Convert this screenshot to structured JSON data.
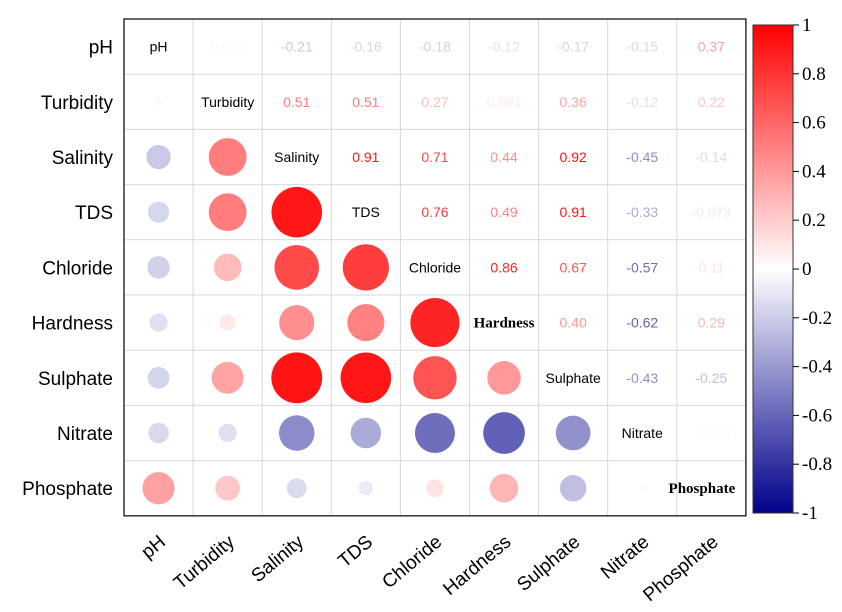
{
  "chart_data": {
    "type": "heatmap",
    "variables": [
      "pH",
      "Turbidity",
      "Salinity",
      "TDS",
      "Chloride",
      "Hardness",
      "Sulphate",
      "Nitrate",
      "Phosphate"
    ],
    "matrix": [
      [
        1,
        0.023,
        -0.21,
        -0.16,
        -0.18,
        -0.12,
        -0.17,
        -0.15,
        0.37
      ],
      [
        0.023,
        1,
        0.51,
        0.51,
        0.27,
        0.091,
        0.36,
        -0.12,
        0.22
      ],
      [
        -0.21,
        0.51,
        1,
        0.91,
        0.71,
        0.44,
        0.92,
        -0.45,
        -0.14
      ],
      [
        -0.16,
        0.51,
        0.91,
        1,
        0.76,
        0.49,
        0.91,
        -0.33,
        -0.073
      ],
      [
        -0.18,
        0.27,
        0.71,
        0.76,
        1,
        0.86,
        0.67,
        -0.57,
        0.11
      ],
      [
        -0.12,
        0.091,
        0.44,
        0.49,
        0.86,
        1,
        0.4,
        -0.62,
        0.29
      ],
      [
        -0.17,
        0.36,
        0.92,
        0.91,
        0.67,
        0.4,
        1,
        -0.43,
        -0.25
      ],
      [
        -0.15,
        -0.12,
        -0.45,
        -0.33,
        -0.57,
        -0.62,
        -0.43,
        1,
        -0.018
      ],
      [
        0.37,
        0.22,
        -0.14,
        -0.073,
        0.11,
        0.29,
        -0.25,
        -0.018,
        1
      ]
    ],
    "value_labels": [
      [
        "",
        "0.023",
        "-0.21",
        "-0.16",
        "-0.18",
        "-0.12",
        "-0.17",
        "-0.15",
        "0.37"
      ],
      [
        "",
        "",
        "0.51",
        "0.51",
        "0.27",
        "0.091",
        "0.36",
        "-0.12",
        "0.22"
      ],
      [
        "",
        "",
        "",
        "0.91",
        "0.71",
        "0.44",
        "0.92",
        "-0.45",
        "-0.14"
      ],
      [
        "",
        "",
        "",
        "",
        "0.76",
        "0.49",
        "0.91",
        "-0.33",
        "-0.073"
      ],
      [
        "",
        "",
        "",
        "",
        "",
        "0.86",
        "0.67",
        "-0.57",
        "0.11"
      ],
      [
        "",
        "",
        "",
        "",
        "",
        "",
        "0.40",
        "-0.62",
        "0.29"
      ],
      [
        "",
        "",
        "",
        "",
        "",
        "",
        "",
        "-0.43",
        "-0.25"
      ],
      [
        "",
        "",
        "",
        "",
        "",
        "",
        "",
        "",
        "-0.018"
      ],
      [
        "",
        "",
        "",
        "",
        "",
        "",
        "",
        "",
        ""
      ]
    ],
    "upper_triangle": "numbers",
    "lower_triangle": "circles",
    "diagonal": "variable names",
    "grid": true,
    "colorbar": {
      "range": [
        -1,
        1
      ],
      "ticks": [
        "1",
        "0.8",
        "0.6",
        "0.4",
        "0.2",
        "0",
        "-0.2",
        "-0.4",
        "-0.6",
        "-0.8",
        "-1"
      ],
      "colors": {
        "negative": "#00008b",
        "zero": "#ffffff",
        "positive": "#ff0000"
      },
      "position": "right"
    }
  }
}
